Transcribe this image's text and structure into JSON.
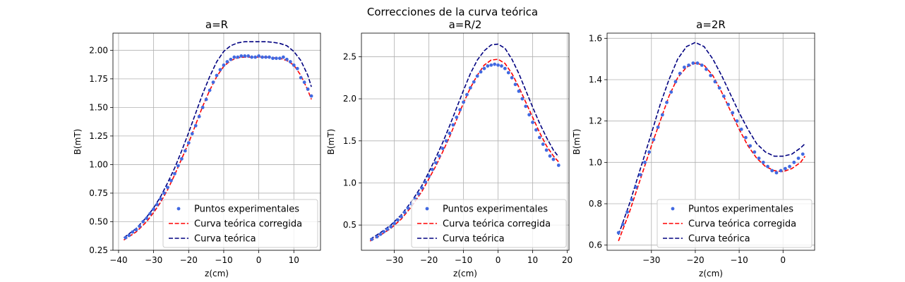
{
  "suptitle": "Correcciones de la curva teórica",
  "legend_labels": {
    "experimental": "Puntos experimentales",
    "corrected": "Curva teórica corregida",
    "theoretical": "Curva teórica"
  },
  "colors": {
    "experimental": "#4169e1",
    "corrected": "#ff0000",
    "theoretical": "#000080",
    "grid": "#b0b0b0"
  },
  "chart_data": [
    {
      "type": "scatter",
      "title": "a=R",
      "xlabel": "z(cm)",
      "ylabel": "B(mT)",
      "xlim": [
        -41.6,
        17.6
      ],
      "ylim": [
        0.25,
        2.15
      ],
      "xticks": [
        -40,
        -30,
        -20,
        -10,
        0,
        10
      ],
      "yticks": [
        0.25,
        0.5,
        0.75,
        1.0,
        1.25,
        1.5,
        1.75,
        2.0
      ],
      "ytick_labels": [
        "0.25",
        "0.50",
        "0.75",
        "1.00",
        "1.25",
        "1.50",
        "1.75",
        "2.00"
      ],
      "grid": true,
      "legend_position": "lower-right",
      "series": [
        {
          "name": "Puntos experimentales",
          "style": "points",
          "x": [
            -38,
            -37,
            -36,
            -35,
            -34,
            -33,
            -32,
            -31,
            -30,
            -29,
            -28,
            -27,
            -26,
            -25,
            -24,
            -23,
            -22,
            -21,
            -20,
            -19,
            -18,
            -17,
            -16,
            -15,
            -14,
            -13,
            -12,
            -11,
            -10,
            -9,
            -8,
            -7,
            -6,
            -5,
            -4,
            -3,
            -2,
            -1,
            0,
            1,
            2,
            3,
            4,
            5,
            6,
            7,
            8,
            9,
            10,
            11,
            12,
            13,
            14,
            15
          ],
          "y": [
            0.36,
            0.38,
            0.41,
            0.43,
            0.46,
            0.5,
            0.53,
            0.57,
            0.61,
            0.65,
            0.7,
            0.75,
            0.8,
            0.86,
            0.92,
            0.99,
            1.05,
            1.12,
            1.19,
            1.27,
            1.34,
            1.42,
            1.5,
            1.57,
            1.65,
            1.72,
            1.78,
            1.83,
            1.87,
            1.9,
            1.92,
            1.94,
            1.94,
            1.95,
            1.95,
            1.95,
            1.94,
            1.94,
            1.95,
            1.94,
            1.94,
            1.94,
            1.93,
            1.93,
            1.93,
            1.94,
            1.92,
            1.9,
            1.87,
            1.84,
            1.76,
            1.72,
            1.66,
            1.6
          ]
        },
        {
          "name": "Curva teórica corregida",
          "style": "dashed",
          "x": [
            -38.5,
            -35,
            -32,
            -30,
            -28,
            -26,
            -24,
            -22,
            -20,
            -18,
            -16,
            -14,
            -12,
            -10,
            -8,
            -6,
            -4,
            -2,
            0,
            2,
            4,
            6,
            8,
            10,
            12,
            14,
            15
          ],
          "y": [
            0.34,
            0.41,
            0.5,
            0.58,
            0.67,
            0.78,
            0.91,
            1.05,
            1.19,
            1.35,
            1.51,
            1.65,
            1.77,
            1.86,
            1.91,
            1.935,
            1.94,
            1.94,
            1.94,
            1.94,
            1.935,
            1.93,
            1.91,
            1.87,
            1.78,
            1.65,
            1.57
          ]
        },
        {
          "name": "Curva teórica",
          "style": "dashed",
          "x": [
            -38.5,
            -35,
            -32,
            -30,
            -28,
            -26,
            -24,
            -22,
            -20,
            -18,
            -16,
            -14,
            -12,
            -10,
            -8,
            -6,
            -4,
            -2,
            0,
            2,
            4,
            6,
            8,
            10,
            12,
            14,
            15
          ],
          "y": [
            0.36,
            0.44,
            0.54,
            0.62,
            0.72,
            0.84,
            0.97,
            1.12,
            1.28,
            1.45,
            1.62,
            1.77,
            1.9,
            1.99,
            2.04,
            2.065,
            2.075,
            2.075,
            2.075,
            2.075,
            2.07,
            2.06,
            2.04,
            1.99,
            1.91,
            1.78,
            1.68
          ]
        }
      ]
    },
    {
      "type": "scatter",
      "title": "a=R/2",
      "xlabel": "z(cm)",
      "ylabel": "B(mT)",
      "xlim": [
        -39.5,
        20.5
      ],
      "ylim": [
        0.2,
        2.78
      ],
      "xticks": [
        -30,
        -20,
        -10,
        0,
        10,
        20
      ],
      "yticks": [
        0.5,
        1.0,
        1.5,
        2.0,
        2.5
      ],
      "ytick_labels": [
        "0.5",
        "1.0",
        "1.5",
        "2.0",
        "2.5"
      ],
      "grid": true,
      "legend_position": "lower-right",
      "series": [
        {
          "name": "Puntos experimentales",
          "style": "points",
          "x": [
            -36.5,
            -35,
            -34,
            -33,
            -32,
            -31,
            -30,
            -29,
            -28,
            -27,
            -26,
            -25,
            -24,
            -23,
            -22,
            -21,
            -20,
            -19,
            -18,
            -17,
            -16,
            -15,
            -14,
            -13,
            -12,
            -11,
            -10,
            -9,
            -8,
            -7,
            -6,
            -5,
            -4,
            -3,
            -2,
            -1,
            0,
            1,
            2,
            3,
            4,
            5,
            6,
            7,
            8,
            9,
            10,
            11,
            12,
            13,
            14,
            15,
            16,
            17.5
          ],
          "y": [
            0.33,
            0.36,
            0.39,
            0.42,
            0.45,
            0.48,
            0.52,
            0.56,
            0.6,
            0.65,
            0.7,
            0.75,
            0.81,
            0.87,
            0.94,
            1.01,
            1.08,
            1.16,
            1.24,
            1.32,
            1.41,
            1.5,
            1.59,
            1.69,
            1.78,
            1.87,
            1.96,
            2.05,
            2.13,
            2.2,
            2.27,
            2.32,
            2.36,
            2.39,
            2.4,
            2.41,
            2.4,
            2.39,
            2.36,
            2.31,
            2.25,
            2.17,
            2.09,
            2.0,
            1.91,
            1.81,
            1.72,
            1.63,
            1.54,
            1.46,
            1.39,
            1.32,
            1.28,
            1.21
          ]
        },
        {
          "name": "Curva teórica corregida",
          "style": "dashed",
          "x": [
            -37,
            -34,
            -31,
            -28,
            -25,
            -22,
            -20,
            -18,
            -16,
            -14,
            -12,
            -10,
            -8,
            -6,
            -4,
            -2,
            0,
            2,
            4,
            6,
            8,
            10,
            12,
            14,
            16,
            17.5
          ],
          "y": [
            0.31,
            0.38,
            0.46,
            0.57,
            0.72,
            0.9,
            1.05,
            1.2,
            1.37,
            1.55,
            1.75,
            1.95,
            2.13,
            2.28,
            2.4,
            2.46,
            2.47,
            2.42,
            2.3,
            2.14,
            1.96,
            1.78,
            1.6,
            1.44,
            1.32,
            1.25
          ]
        },
        {
          "name": "Curva teórica",
          "style": "dashed",
          "x": [
            -37,
            -34,
            -31,
            -28,
            -25,
            -22,
            -20,
            -18,
            -16,
            -14,
            -12,
            -10,
            -8,
            -6,
            -4,
            -2,
            0,
            2,
            4,
            6,
            8,
            10,
            12,
            14,
            16,
            17.5
          ],
          "y": [
            0.33,
            0.41,
            0.5,
            0.62,
            0.78,
            0.97,
            1.13,
            1.3,
            1.48,
            1.68,
            1.89,
            2.1,
            2.3,
            2.46,
            2.57,
            2.64,
            2.65,
            2.6,
            2.47,
            2.3,
            2.1,
            1.9,
            1.71,
            1.54,
            1.39,
            1.31
          ]
        }
      ]
    },
    {
      "type": "scatter",
      "title": "a=2R",
      "xlabel": "z(cm)",
      "ylabel": "B(mT)",
      "xlim": [
        -40.1,
        7.2
      ],
      "ylim": [
        0.575,
        1.625
      ],
      "xticks": [
        -30,
        -20,
        -10,
        0
      ],
      "yticks": [
        0.6,
        0.8,
        1.0,
        1.2,
        1.4,
        1.6
      ],
      "ytick_labels": [
        "0.6",
        "0.8",
        "1.0",
        "1.2",
        "1.4",
        "1.6"
      ],
      "grid": true,
      "legend_position": "lower-right",
      "series": [
        {
          "name": "Puntos experimentales",
          "style": "points",
          "x": [
            -37.5,
            -36.5,
            -35.5,
            -34.5,
            -33.5,
            -32.5,
            -31.5,
            -30.5,
            -29.5,
            -28.5,
            -27.5,
            -26.5,
            -25.5,
            -24.5,
            -23.5,
            -22.5,
            -21.5,
            -20.5,
            -19.5,
            -18.5,
            -17.5,
            -16.5,
            -15.5,
            -14.5,
            -13.5,
            -12.5,
            -11.5,
            -10.5,
            -9.5,
            -8.5,
            -7.5,
            -6.5,
            -5.5,
            -4.5,
            -3.5,
            -2.5,
            -1.5,
            -0.5,
            0.5,
            1.5,
            2.5,
            3.5,
            4.5
          ],
          "y": [
            0.66,
            0.7,
            0.76,
            0.82,
            0.88,
            0.94,
            1.0,
            1.05,
            1.11,
            1.17,
            1.23,
            1.29,
            1.34,
            1.39,
            1.43,
            1.46,
            1.47,
            1.48,
            1.48,
            1.47,
            1.45,
            1.42,
            1.39,
            1.36,
            1.32,
            1.28,
            1.24,
            1.2,
            1.16,
            1.12,
            1.08,
            1.05,
            1.02,
            1.0,
            0.98,
            0.96,
            0.95,
            0.96,
            0.97,
            0.98,
            1.0,
            1.02,
            1.04
          ]
        },
        {
          "name": "Curva teórica corregida",
          "style": "dashed",
          "x": [
            -37.5,
            -35,
            -32.5,
            -30,
            -28,
            -26,
            -24,
            -22,
            -20,
            -18,
            -16,
            -14,
            -12,
            -10,
            -8,
            -6,
            -4,
            -2,
            0,
            2,
            4,
            5
          ],
          "y": [
            0.62,
            0.76,
            0.92,
            1.08,
            1.2,
            1.32,
            1.41,
            1.46,
            1.48,
            1.47,
            1.42,
            1.34,
            1.25,
            1.16,
            1.08,
            1.02,
            0.98,
            0.96,
            0.955,
            0.97,
            1.0,
            1.03
          ]
        },
        {
          "name": "Curva teórica",
          "style": "dashed",
          "x": [
            -37.5,
            -35,
            -32.5,
            -30,
            -28,
            -26,
            -24,
            -22,
            -20,
            -18,
            -16,
            -14,
            -12,
            -10,
            -8,
            -6,
            -4,
            -2,
            0,
            2,
            4,
            5
          ],
          "y": [
            0.65,
            0.8,
            0.97,
            1.14,
            1.28,
            1.4,
            1.5,
            1.56,
            1.58,
            1.56,
            1.5,
            1.42,
            1.33,
            1.24,
            1.16,
            1.09,
            1.05,
            1.03,
            1.03,
            1.04,
            1.07,
            1.09
          ]
        }
      ]
    }
  ]
}
